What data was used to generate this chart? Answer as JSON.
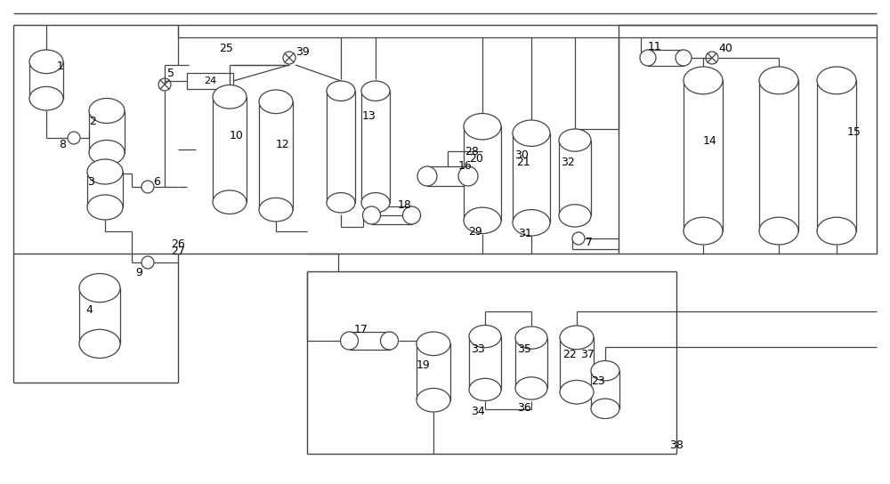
{
  "bg_color": "#ffffff",
  "line_color": "#444444",
  "fig_width": 10.0,
  "fig_height": 5.44,
  "dpi": 100
}
